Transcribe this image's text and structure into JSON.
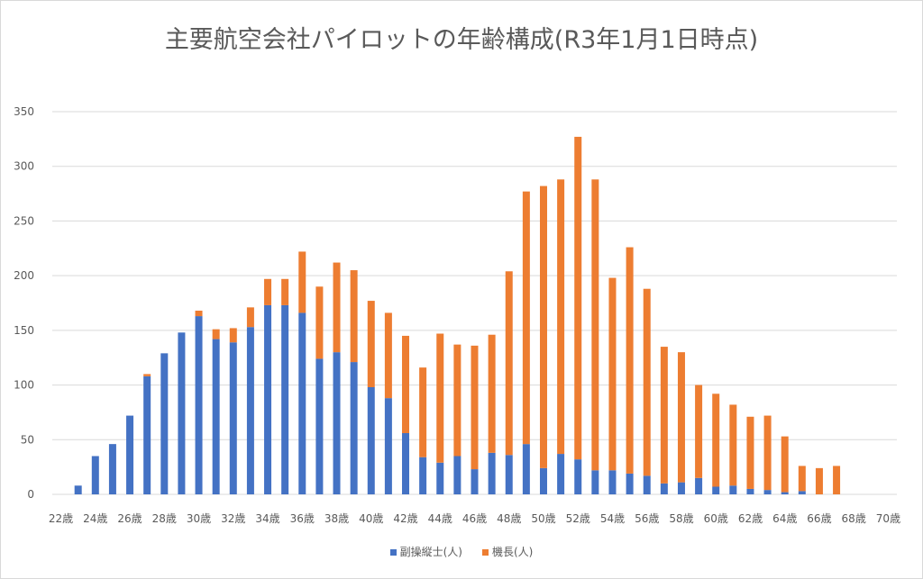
{
  "chart_data": {
    "type": "bar",
    "stacked": true,
    "title": "主要航空会社パイロットの年齢構成(R3年1月1日時点)",
    "xlabel": "",
    "ylabel": "",
    "ylim": [
      0,
      350
    ],
    "yticks": [
      0,
      50,
      100,
      150,
      200,
      250,
      300,
      350
    ],
    "grid": true,
    "legend_position": "bottom",
    "categories": [
      "22歳",
      "23歳",
      "24歳",
      "25歳",
      "26歳",
      "27歳",
      "28歳",
      "29歳",
      "30歳",
      "31歳",
      "32歳",
      "33歳",
      "34歳",
      "35歳",
      "36歳",
      "37歳",
      "38歳",
      "39歳",
      "40歳",
      "41歳",
      "42歳",
      "43歳",
      "44歳",
      "45歳",
      "46歳",
      "47歳",
      "48歳",
      "49歳",
      "50歳",
      "51歳",
      "52歳",
      "53歳",
      "54歳",
      "55歳",
      "56歳",
      "57歳",
      "58歳",
      "59歳",
      "60歳",
      "61歳",
      "62歳",
      "63歳",
      "64歳",
      "65歳",
      "66歳",
      "67歳",
      "68歳",
      "69歳",
      "70歳"
    ],
    "series": [
      {
        "name": "副操縦士(人)",
        "color": "#4472C4",
        "values": [
          0,
          8,
          35,
          46,
          72,
          108,
          129,
          148,
          163,
          142,
          139,
          153,
          173,
          173,
          166,
          124,
          130,
          121,
          98,
          88,
          56,
          34,
          29,
          35,
          23,
          38,
          36,
          46,
          24,
          37,
          32,
          22,
          22,
          19,
          17,
          10,
          11,
          15,
          7,
          8,
          5,
          4,
          2,
          3,
          0,
          0,
          0,
          0,
          0
        ]
      },
      {
        "name": "機長(人)",
        "color": "#ED7D31",
        "values": [
          0,
          0,
          0,
          0,
          0,
          2,
          0,
          0,
          5,
          9,
          13,
          18,
          24,
          24,
          56,
          66,
          82,
          84,
          79,
          78,
          89,
          82,
          118,
          102,
          113,
          108,
          168,
          231,
          258,
          251,
          295,
          266,
          176,
          207,
          171,
          125,
          119,
          85,
          85,
          74,
          66,
          68,
          51,
          23,
          24,
          26,
          0,
          0,
          0
        ]
      }
    ]
  }
}
